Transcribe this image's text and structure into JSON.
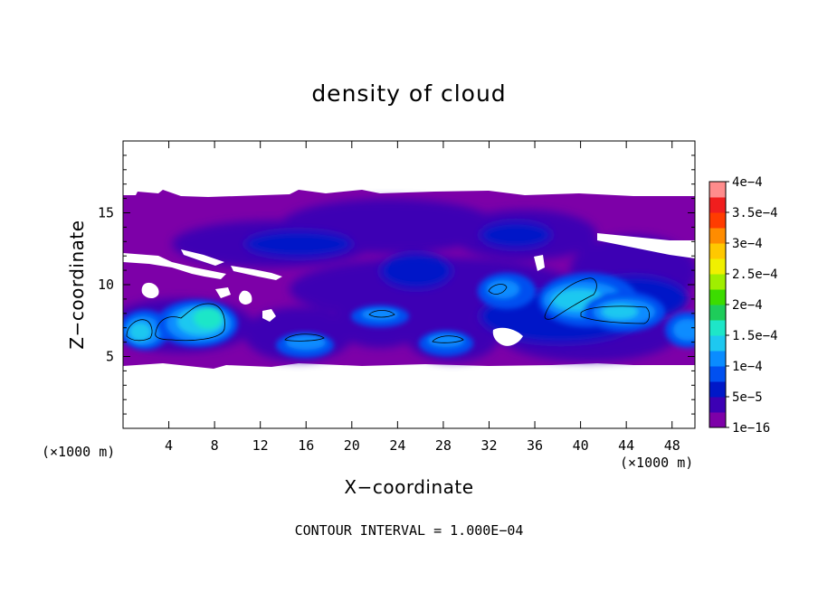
{
  "chart_data": {
    "type": "heatmap",
    "title": "density of cloud",
    "xlabel": "X−coordinate",
    "ylabel": "Z−coordinate",
    "x_unit_left": "(×1000 m)",
    "x_unit_right": "(×1000 m)",
    "xlim": [
      0,
      50
    ],
    "ylim": [
      0,
      20
    ],
    "x_ticks": [
      4,
      8,
      12,
      16,
      20,
      24,
      28,
      32,
      36,
      40,
      44,
      48
    ],
    "x_tick_labels": [
      "4",
      "8",
      "12",
      "16",
      "20",
      "24",
      "28",
      "32",
      "36",
      "40",
      "44",
      "48"
    ],
    "y_ticks": [
      5,
      10,
      15
    ],
    "y_tick_labels": [
      "5",
      "10",
      "15"
    ],
    "colorbar": {
      "labels": [
        "1e−16",
        "5e−5",
        "1e−4",
        "1.5e−4",
        "2e−4",
        "2.5e−4",
        "3e−4",
        "3.5e−4",
        "4e−4"
      ],
      "level_values": [
        1e-16,
        2.5e-05,
        5e-05,
        7.5e-05,
        0.0001,
        0.000125,
        0.00015,
        0.000175,
        0.0002,
        0.000225,
        0.00025,
        0.000275,
        0.0003,
        0.000325,
        0.00035,
        0.000375
      ],
      "colors": [
        "#7d00a8",
        "#3c00b4",
        "#0018c8",
        "#0050f0",
        "#0a8cff",
        "#1ec8f0",
        "#1ee6c8",
        "#1ecc5a",
        "#3cdc00",
        "#a0ee00",
        "#f0f000",
        "#ffc800",
        "#ff8c00",
        "#ff3c00",
        "#f01e1e",
        "#ff8c8c"
      ]
    },
    "cloud_cells": [
      {
        "x": 1.3,
        "z": 6.8,
        "peak": 0.000145
      },
      {
        "x": 7.2,
        "z": 7.4,
        "peak": 0.00017
      },
      {
        "x": 16.3,
        "z": 5.9,
        "peak": 0.00011
      },
      {
        "x": 22.7,
        "z": 7.7,
        "peak": 0.000105
      },
      {
        "x": 28.3,
        "z": 6.0,
        "peak": 0.000105
      },
      {
        "x": 33.6,
        "z": 9.6,
        "peak": 0.00011
      },
      {
        "x": 38.8,
        "z": 8.8,
        "peak": 0.00014
      },
      {
        "x": 44.0,
        "z": 8.2,
        "peak": 0.00013
      },
      {
        "x": 49.3,
        "z": 6.7,
        "peak": 0.00011
      }
    ],
    "cloud_base_z": 4.5,
    "cloud_top_z": 16.0,
    "annotation": "CONTOUR INTERVAL = 1.000E−04"
  }
}
